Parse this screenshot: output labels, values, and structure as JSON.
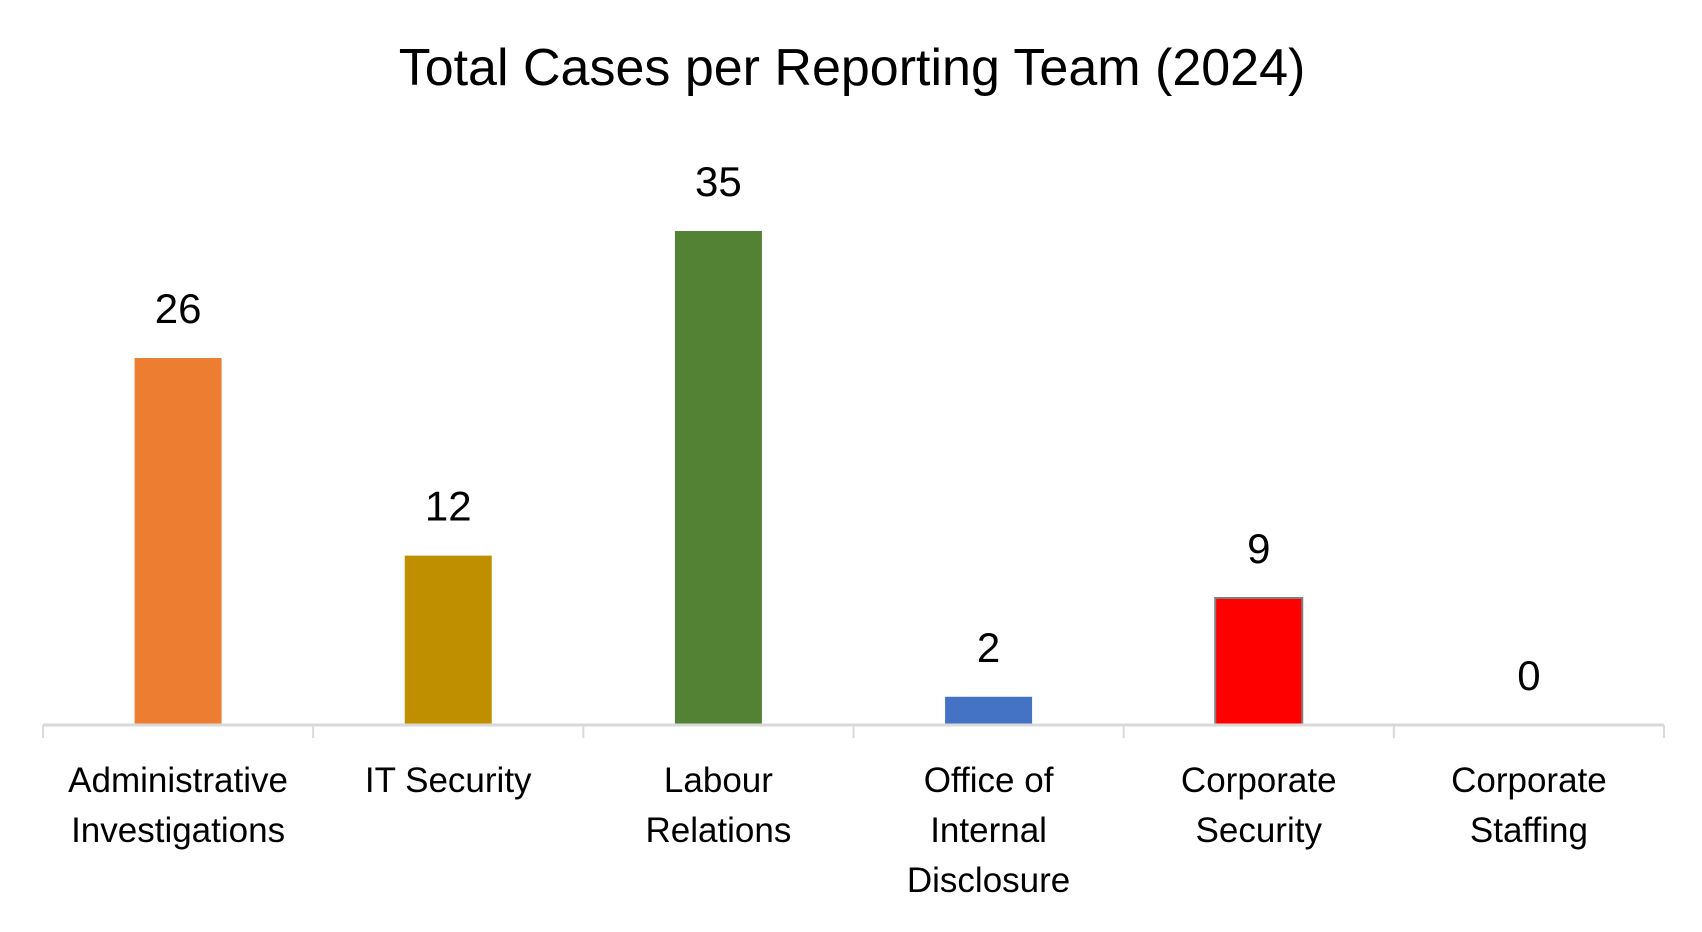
{
  "chart_data": {
    "type": "bar",
    "title": "Total Cases per Reporting Team (2024)",
    "xlabel": "",
    "ylabel": "",
    "categories": [
      [
        "Administrative",
        "Investigations"
      ],
      [
        "IT Security"
      ],
      [
        "Labour",
        "Relations"
      ],
      [
        "Office of",
        "Internal",
        "Disclosure"
      ],
      [
        "Corporate",
        "Security"
      ],
      [
        "Corporate",
        "Staffing"
      ]
    ],
    "values": [
      26,
      12,
      35,
      2,
      9,
      0
    ],
    "colors": [
      "#ED7D31",
      "#BF8F00",
      "#548235",
      "#4472C4",
      "#FF0000",
      "#A5A5A5"
    ],
    "ylim": [
      0,
      35
    ],
    "grid": false,
    "legend": "none",
    "data_labels": true
  }
}
